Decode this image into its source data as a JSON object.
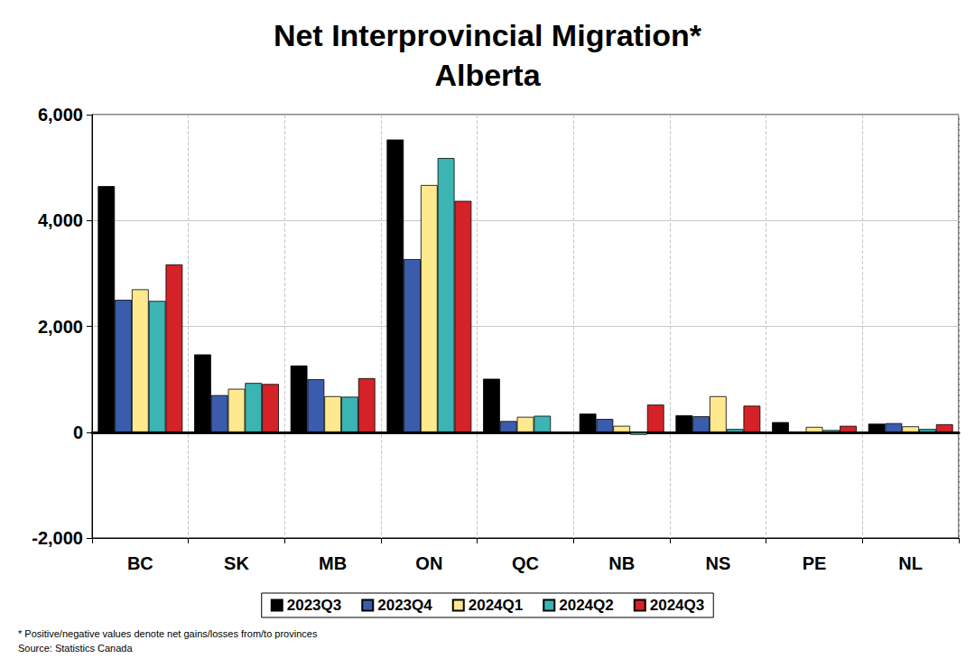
{
  "chart_data": {
    "type": "bar",
    "title": "Net Interprovincial Migration*",
    "subtitle": "Alberta",
    "annotations": [
      "* Positive/negative values denote net gains/losses from/to provinces",
      "Source: Statistics Canada"
    ],
    "categories": [
      "BC",
      "SK",
      "MB",
      "ON",
      "QC",
      "NB",
      "NS",
      "PE",
      "NL"
    ],
    "series": [
      {
        "name": "2023Q3",
        "color": "#000000",
        "values": [
          4650,
          1470,
          1260,
          5530,
          1010,
          350,
          320,
          190,
          160
        ]
      },
      {
        "name": "2023Q4",
        "color": "#3b5cad",
        "values": [
          2500,
          700,
          1000,
          3270,
          210,
          250,
          300,
          10,
          170
        ]
      },
      {
        "name": "2024Q1",
        "color": "#ffe98f",
        "values": [
          2700,
          820,
          680,
          4670,
          290,
          120,
          680,
          100,
          110
        ]
      },
      {
        "name": "2024Q2",
        "color": "#3cb4b4",
        "values": [
          2480,
          930,
          670,
          5180,
          310,
          -50,
          60,
          40,
          60
        ]
      },
      {
        "name": "2024Q3",
        "color": "#d42228",
        "values": [
          3170,
          910,
          1020,
          4370,
          null,
          520,
          500,
          120,
          150
        ]
      }
    ],
    "ylim": [
      -2000,
      6000
    ],
    "yticks": [
      {
        "value": -2000,
        "label": "-2,000"
      },
      0,
      {
        "value": 2000,
        "label": "2,000"
      },
      {
        "value": 4000,
        "label": "4,000"
      },
      {
        "value": 6000,
        "label": "6,000"
      }
    ],
    "grid": true,
    "legend": "bottom"
  }
}
